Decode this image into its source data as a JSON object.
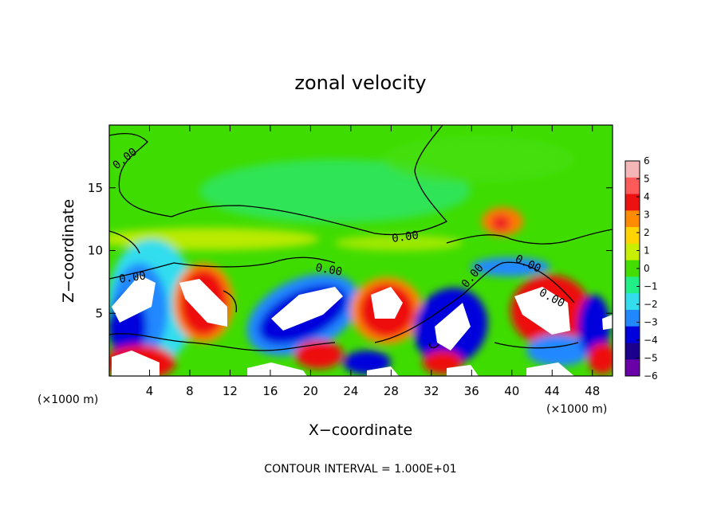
{
  "chart_data": {
    "type": "heatmap",
    "title": "zonal velocity",
    "xlabel": "X−coordinate",
    "ylabel": "Z−coordinate",
    "x_unit": "(×1000 m)",
    "y_unit": "(×1000 m)",
    "x_ticks": [
      4,
      8,
      12,
      16,
      20,
      24,
      28,
      32,
      36,
      40,
      44,
      48
    ],
    "y_ticks": [
      5,
      10,
      15
    ],
    "xlim": [
      0,
      50
    ],
    "ylim": [
      0,
      20
    ],
    "colorbar": {
      "ticks": [
        6,
        5,
        4,
        3,
        2,
        1,
        0,
        -1,
        -2,
        -3,
        -4,
        -5,
        -6
      ],
      "colors": [
        "#f4b6b6",
        "#ff5a5a",
        "#ee1111",
        "#ff8c00",
        "#ffd400",
        "#c8ee00",
        "#44dd00",
        "#22ee88",
        "#33ddee",
        "#2288ff",
        "#0000dd",
        "#1a008c",
        "#6a00a8"
      ]
    },
    "contour_label": "0.00",
    "footer": "CONTOUR INTERVAL = 1.000E+01"
  }
}
